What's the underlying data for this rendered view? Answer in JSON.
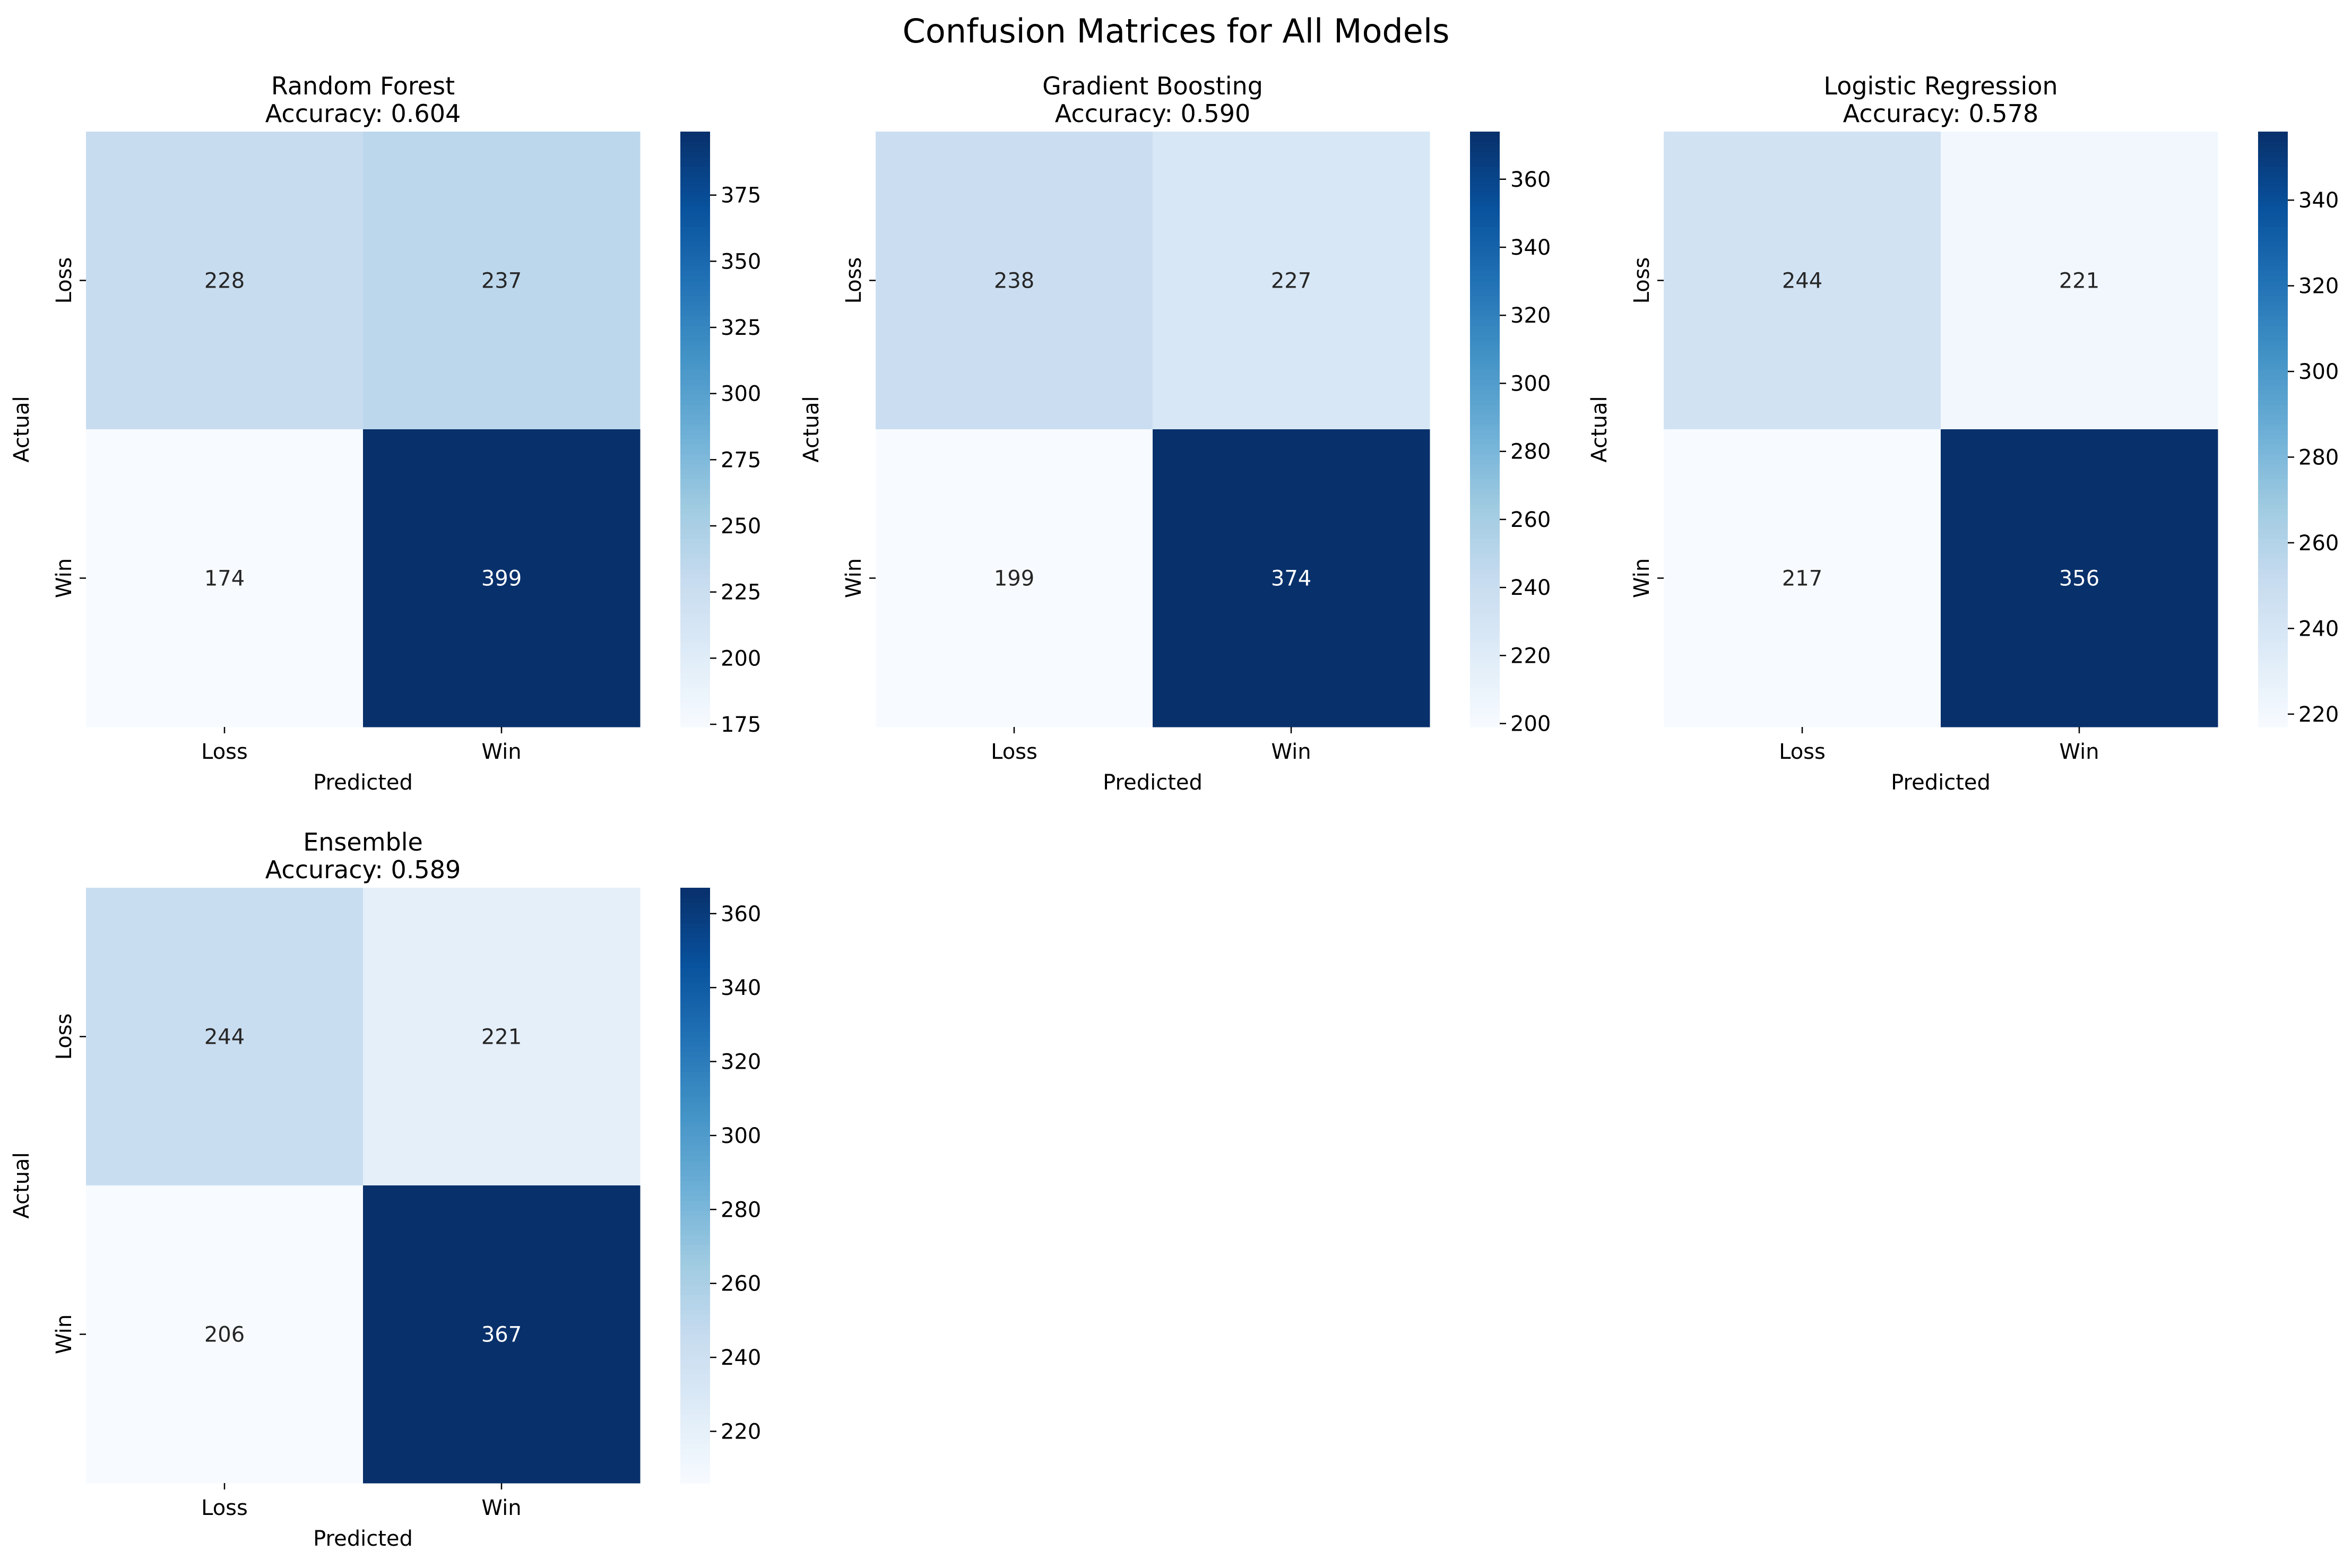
{
  "figure": {
    "title": "Confusion Matrices for All Models"
  },
  "chart_data": [
    {
      "type": "heatmap",
      "title": "Random Forest",
      "subtitle": "Accuracy: 0.604",
      "xlabel": "Predicted",
      "ylabel": "Actual",
      "x_categories": [
        "Loss",
        "Win"
      ],
      "y_categories": [
        "Loss",
        "Win"
      ],
      "values": [
        [
          228,
          237
        ],
        [
          174,
          399
        ]
      ],
      "colormap": "Blues",
      "colorbar": {
        "min": 174,
        "max": 399,
        "ticks": [
          175,
          200,
          225,
          250,
          275,
          300,
          325,
          350,
          375
        ]
      }
    },
    {
      "type": "heatmap",
      "title": "Gradient Boosting",
      "subtitle": "Accuracy: 0.590",
      "xlabel": "Predicted",
      "ylabel": "Actual",
      "x_categories": [
        "Loss",
        "Win"
      ],
      "y_categories": [
        "Loss",
        "Win"
      ],
      "values": [
        [
          238,
          227
        ],
        [
          199,
          374
        ]
      ],
      "colormap": "Blues",
      "colorbar": {
        "min": 199,
        "max": 374,
        "ticks": [
          200,
          220,
          240,
          260,
          280,
          300,
          320,
          340,
          360
        ]
      }
    },
    {
      "type": "heatmap",
      "title": "Logistic Regression",
      "subtitle": "Accuracy: 0.578",
      "xlabel": "Predicted",
      "ylabel": "Actual",
      "x_categories": [
        "Loss",
        "Win"
      ],
      "y_categories": [
        "Loss",
        "Win"
      ],
      "values": [
        [
          244,
          221
        ],
        [
          217,
          356
        ]
      ],
      "colormap": "Blues",
      "colorbar": {
        "min": 217,
        "max": 356,
        "ticks": [
          220,
          240,
          260,
          280,
          300,
          320,
          340
        ]
      }
    },
    {
      "type": "heatmap",
      "title": "Ensemble",
      "subtitle": "Accuracy: 0.589",
      "xlabel": "Predicted",
      "ylabel": "Actual",
      "x_categories": [
        "Loss",
        "Win"
      ],
      "y_categories": [
        "Loss",
        "Win"
      ],
      "values": [
        [
          244,
          221
        ],
        [
          206,
          367
        ]
      ],
      "colormap": "Blues",
      "colorbar": {
        "min": 206,
        "max": 367,
        "ticks": [
          220,
          240,
          260,
          280,
          300,
          320,
          340,
          360
        ]
      }
    }
  ]
}
